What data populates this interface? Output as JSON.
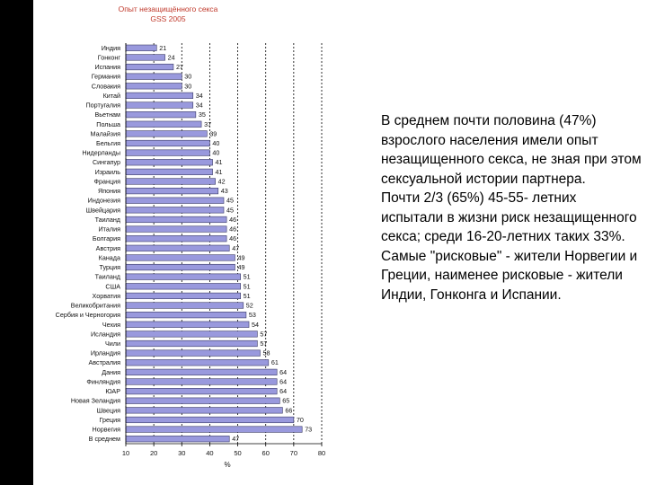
{
  "chart_data": {
    "type": "bar",
    "orientation": "horizontal",
    "title": "Опыт незащищённого секса",
    "subtitle": "GSS 2005",
    "xlabel": "%",
    "ylabel": "",
    "xlim": [
      10,
      80
    ],
    "xticks": [
      10,
      20,
      30,
      40,
      50,
      60,
      70,
      80
    ],
    "grid": true,
    "legend": "none",
    "categories": [
      "Индия",
      "Гонконг",
      "Испания",
      "Германия",
      "Словакия",
      "Китай",
      "Португалия",
      "Вьетнам",
      "Польша",
      "Малайзия",
      "Бельгия",
      "Нидерланды",
      "Сингапур",
      "Израиль",
      "Франция",
      "Япония",
      "Индонезия",
      "Швейцария",
      "Таиланд",
      "Италия",
      "Болгария",
      "Австрия",
      "Канада",
      "Турция",
      "Таиланд",
      "США",
      "Хорватия",
      "Великобритания",
      "Сербия и Черногория",
      "Чехия",
      "Исландия",
      "Чили",
      "Ирландия",
      "Австралия",
      "Дания",
      "Финляндия",
      "ЮАР",
      "Новая Зеландия",
      "Швеция",
      "Греция",
      "Норвегия",
      "В среднем"
    ],
    "values": [
      21,
      24,
      27,
      30,
      30,
      34,
      34,
      35,
      37,
      39,
      40,
      40,
      41,
      41,
      42,
      43,
      45,
      45,
      46,
      46,
      46,
      47,
      49,
      49,
      51,
      51,
      51,
      52,
      53,
      54,
      57,
      57,
      58,
      61,
      64,
      64,
      64,
      65,
      66,
      70,
      73,
      47
    ],
    "colors": {
      "bar": "#9999dd",
      "bar_border": "#3b3b66",
      "grid": "#000000",
      "title": "#c0392b"
    }
  },
  "summary": {
    "p1": "В среднем почти половина (47%) взрослого населения имели опыт незащищенного секса, не зная при этом сексуальной истории партнера.",
    "p2": "Почти 2/3 (65%) 45-55- летних испытали в жизни риск незащищенного секса; среди 16-20-летних таких 33%.",
    "p3": "Самые \"рисковые\" - жители Норвегии и Греции, наименее рисковые - жители Индии, Гонконга и Испании."
  }
}
